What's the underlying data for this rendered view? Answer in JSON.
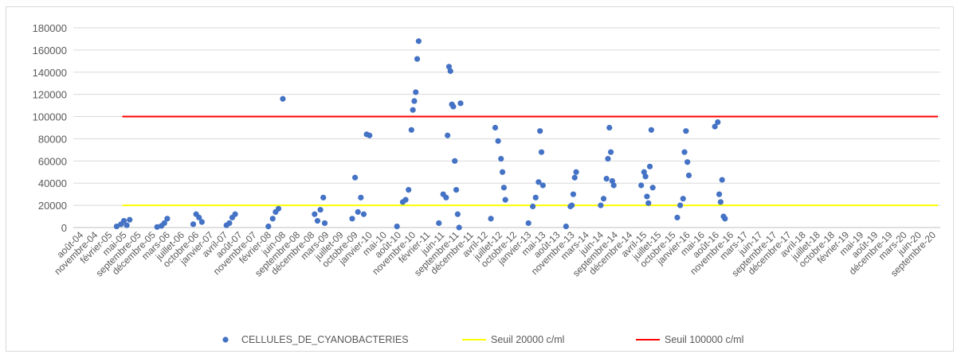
{
  "chart_data": {
    "type": "scatter",
    "title": "",
    "xlabel": "",
    "ylabel": "",
    "ylim": [
      0,
      180000
    ],
    "yticks": [
      "0",
      "20000",
      "40000",
      "60000",
      "80000",
      "100000",
      "120000",
      "140000",
      "160000",
      "180000"
    ],
    "xtick_labels": [
      "août-04",
      "novembre-04",
      "février-05",
      "mai-05",
      "septembre-05",
      "décembre-05",
      "mars-06",
      "juillet-06",
      "octobre-06",
      "janvier-07",
      "avril-07",
      "août-07",
      "novembre-07",
      "février-08",
      "juin-08",
      "septembre-08",
      "décembre-08",
      "mars-09",
      "juillet-09",
      "octobre-09",
      "janvier-10",
      "mai-10",
      "août-10",
      "novembre-10",
      "février-11",
      "juin-11",
      "septembre-11",
      "décembre-11",
      "avril-12",
      "juillet-12",
      "octobre-12",
      "janvier-13",
      "mai-13",
      "août-13",
      "novembre-13",
      "mars-14",
      "juin-14",
      "septembre-14",
      "décembre-14",
      "avril-15",
      "juillet-15",
      "octobre-15",
      "janvier-16",
      "mai-16",
      "août-16",
      "novembre-16",
      "mars-17",
      "juin-17",
      "septembre-17",
      "décembre-17",
      "avril-18",
      "juillet-18",
      "octobre-18",
      "février-19",
      "mai-19",
      "août-19",
      "décembre-19",
      "mars-20",
      "juin-20",
      "septembre-20"
    ],
    "grid": true,
    "legend_position": "bottom",
    "series": [
      {
        "name": "CELLULES_DE_CYANOBACTERIES",
        "kind": "scatter",
        "color": "#4472c4",
        "points": [
          [
            3.0,
            1000
          ],
          [
            3.3,
            3000
          ],
          [
            3.5,
            6000
          ],
          [
            3.7,
            2000
          ],
          [
            3.9,
            7000
          ],
          [
            5.8,
            500
          ],
          [
            6.1,
            1500
          ],
          [
            6.3,
            4000
          ],
          [
            6.5,
            8000
          ],
          [
            8.3,
            3000
          ],
          [
            8.5,
            12000
          ],
          [
            8.7,
            9000
          ],
          [
            8.9,
            5000
          ],
          [
            10.6,
            2000
          ],
          [
            10.8,
            4000
          ],
          [
            11.0,
            9000
          ],
          [
            11.2,
            12000
          ],
          [
            13.5,
            1000
          ],
          [
            13.8,
            8000
          ],
          [
            14.0,
            14000
          ],
          [
            14.2,
            17000
          ],
          [
            14.5,
            116000
          ],
          [
            16.7,
            12000
          ],
          [
            16.9,
            6000
          ],
          [
            17.1,
            16000
          ],
          [
            17.3,
            27000
          ],
          [
            17.4,
            4000
          ],
          [
            19.3,
            8000
          ],
          [
            19.5,
            45000
          ],
          [
            19.7,
            14000
          ],
          [
            19.9,
            27000
          ],
          [
            20.1,
            12000
          ],
          [
            20.3,
            84000
          ],
          [
            20.5,
            83000
          ],
          [
            22.4,
            1000
          ],
          [
            22.8,
            23000
          ],
          [
            23.0,
            25000
          ],
          [
            23.2,
            34000
          ],
          [
            23.4,
            88000
          ],
          [
            23.5,
            106000
          ],
          [
            23.6,
            114000
          ],
          [
            23.7,
            122000
          ],
          [
            23.8,
            152000
          ],
          [
            23.9,
            168000
          ],
          [
            25.3,
            4000
          ],
          [
            25.6,
            30000
          ],
          [
            25.8,
            27000
          ],
          [
            25.9,
            83000
          ],
          [
            26.0,
            145000
          ],
          [
            26.1,
            141000
          ],
          [
            26.2,
            111000
          ],
          [
            26.3,
            109000
          ],
          [
            26.4,
            60000
          ],
          [
            26.5,
            34000
          ],
          [
            26.6,
            12000
          ],
          [
            26.7,
            0
          ],
          [
            26.8,
            112000
          ],
          [
            28.9,
            8000
          ],
          [
            29.2,
            90000
          ],
          [
            29.4,
            78000
          ],
          [
            29.6,
            62000
          ],
          [
            29.7,
            50000
          ],
          [
            29.8,
            36000
          ],
          [
            29.9,
            25000
          ],
          [
            31.5,
            4000
          ],
          [
            31.8,
            19000
          ],
          [
            32.0,
            27000
          ],
          [
            32.2,
            41000
          ],
          [
            32.3,
            87000
          ],
          [
            32.4,
            68000
          ],
          [
            32.5,
            38000
          ],
          [
            34.1,
            1000
          ],
          [
            34.4,
            19000
          ],
          [
            34.5,
            20000
          ],
          [
            34.6,
            30000
          ],
          [
            34.7,
            45000
          ],
          [
            34.8,
            50000
          ],
          [
            36.5,
            20000
          ],
          [
            36.7,
            26000
          ],
          [
            36.9,
            44000
          ],
          [
            37.0,
            62000
          ],
          [
            37.1,
            90000
          ],
          [
            37.2,
            68000
          ],
          [
            37.3,
            42000
          ],
          [
            37.4,
            38000
          ],
          [
            39.3,
            38000
          ],
          [
            39.5,
            50000
          ],
          [
            39.6,
            46000
          ],
          [
            39.7,
            28000
          ],
          [
            39.8,
            22000
          ],
          [
            39.9,
            55000
          ],
          [
            40.0,
            88000
          ],
          [
            40.1,
            36000
          ],
          [
            41.8,
            9000
          ],
          [
            42.0,
            20000
          ],
          [
            42.2,
            26000
          ],
          [
            42.3,
            68000
          ],
          [
            42.4,
            87000
          ],
          [
            42.5,
            59000
          ],
          [
            42.6,
            47000
          ],
          [
            44.4,
            91000
          ],
          [
            44.6,
            95000
          ],
          [
            44.7,
            30000
          ],
          [
            44.8,
            23000
          ],
          [
            44.9,
            43000
          ],
          [
            45.0,
            10000
          ],
          [
            45.1,
            8000
          ]
        ]
      },
      {
        "name": "Seuil 20000 c/ml",
        "kind": "line",
        "color": "#ffff00",
        "value": 20000
      },
      {
        "name": "Seuil 100000 c/ml",
        "kind": "line",
        "color": "#ff0000",
        "value": 100000
      }
    ]
  }
}
